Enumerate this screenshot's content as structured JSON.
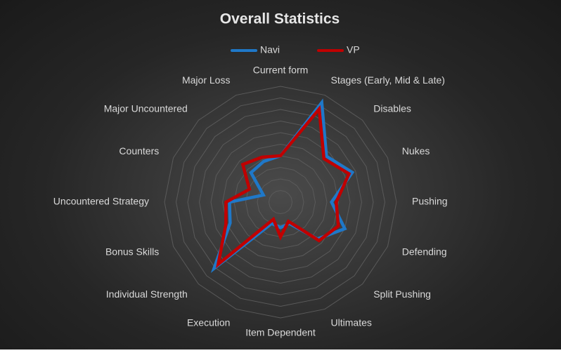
{
  "chart_data": {
    "type": "radar",
    "title": "Overall Statistics",
    "categories": [
      "Current form",
      "Stages (Early, Mid & Late)",
      "Disables",
      "Nukes",
      "Pushing",
      "Defending",
      "Split Pushing",
      "Ultimates",
      "Item Dependent",
      "Execution",
      "Individual Strength",
      "Bonus Skills",
      "Uncountered Strategy",
      "Counters",
      "Major Uncountered",
      "Major Loss"
    ],
    "series": [
      {
        "name": "Navi",
        "color": "#1f78c8",
        "values": [
          4.0,
          9.3,
          5.6,
          6.7,
          4.4,
          6.0,
          4.5,
          2.0,
          2.2,
          2.0,
          8.1,
          4.7,
          4.4,
          1.6,
          3.6,
          3.8
        ]
      },
      {
        "name": "VP",
        "color": "#c00000",
        "values": [
          4.0,
          8.7,
          5.3,
          6.4,
          4.8,
          5.4,
          4.7,
          1.8,
          3.0,
          1.6,
          7.6,
          5.1,
          4.7,
          2.9,
          4.6,
          4.2
        ]
      }
    ],
    "ylim": [
      0,
      10
    ],
    "yticks": [
      0,
      1,
      2,
      3,
      4,
      5,
      6,
      7,
      8,
      9,
      10
    ],
    "grid": true,
    "legend": "top"
  }
}
